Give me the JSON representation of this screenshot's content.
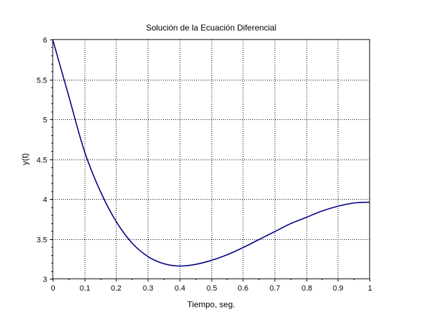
{
  "chart_data": {
    "type": "line",
    "title": "Solución de la Ecuación Diferencial",
    "xlabel": "Tiempo, seg.",
    "ylabel": "y(t)",
    "xlim": [
      0,
      1
    ],
    "ylim": [
      3,
      6
    ],
    "grid": true,
    "legend": "none",
    "x_ticks": [
      {
        "value": 0,
        "label": "0"
      },
      {
        "value": 0.1,
        "label": "0.1"
      },
      {
        "value": 0.2,
        "label": "0.2"
      },
      {
        "value": 0.3,
        "label": "0.3"
      },
      {
        "value": 0.4,
        "label": "0.4"
      },
      {
        "value": 0.5,
        "label": "0.5"
      },
      {
        "value": 0.6,
        "label": "0.6"
      },
      {
        "value": 0.7,
        "label": "0.7"
      },
      {
        "value": 0.8,
        "label": "0.8"
      },
      {
        "value": 0.9,
        "label": "0.9"
      },
      {
        "value": 1,
        "label": "1"
      }
    ],
    "y_ticks": [
      {
        "value": 3,
        "label": "3"
      },
      {
        "value": 3.5,
        "label": "3.5"
      },
      {
        "value": 4,
        "label": "4"
      },
      {
        "value": 4.5,
        "label": "4.5"
      },
      {
        "value": 5,
        "label": "5"
      },
      {
        "value": 5.5,
        "label": "5.5"
      },
      {
        "value": 6,
        "label": "6"
      }
    ],
    "series": [
      {
        "color": "#000080",
        "x": [
          0,
          0.05,
          0.1,
          0.15,
          0.2,
          0.25,
          0.3,
          0.35,
          0.4,
          0.45,
          0.5,
          0.55,
          0.6,
          0.65,
          0.7,
          0.75,
          0.8,
          0.85,
          0.9,
          0.95,
          1
        ],
        "y": [
          6.0,
          5.3,
          4.6,
          4.1,
          3.72,
          3.45,
          3.28,
          3.19,
          3.16,
          3.18,
          3.23,
          3.3,
          3.39,
          3.49,
          3.59,
          3.69,
          3.77,
          3.85,
          3.91,
          3.95,
          3.96
        ]
      }
    ]
  }
}
